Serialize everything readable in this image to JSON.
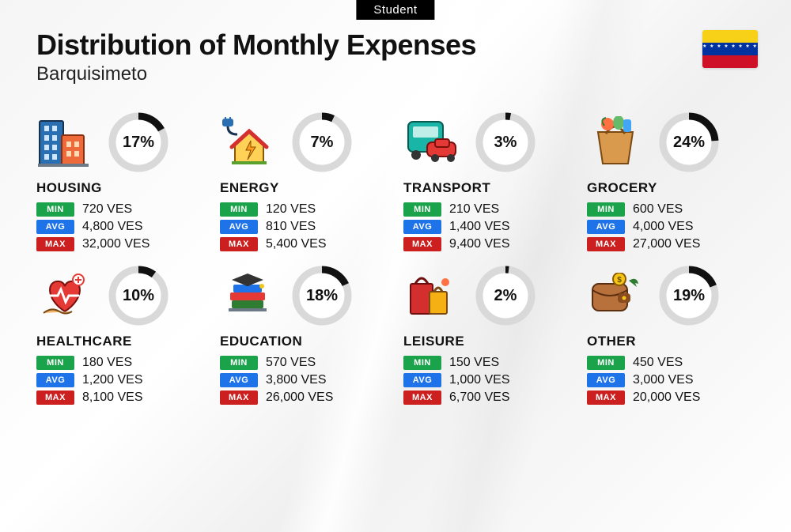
{
  "badge": "Student",
  "title": "Distribution of Monthly Expenses",
  "subtitle": "Barquisimeto",
  "currency": "VES",
  "flag": {
    "top": "#f7d117",
    "middle": "#0033a0",
    "bottom": "#ce1126",
    "stars": "★ ★ ★ ★ ★ ★ ★ ★"
  },
  "ring": {
    "radius": 33,
    "stroke_width": 9,
    "track_color": "#d9d9d9",
    "arc_color": "#111111",
    "center_bg": "#ffffff"
  },
  "stat_labels": {
    "min": "MIN",
    "avg": "AVG",
    "max": "MAX"
  },
  "stat_colors": {
    "min": "#1aa34a",
    "avg": "#1e73e8",
    "max": "#cc1f1f"
  },
  "categories": [
    {
      "key": "housing",
      "label": "HOUSING",
      "pct": 17,
      "min": "720",
      "avg": "4,800",
      "max": "32,000"
    },
    {
      "key": "energy",
      "label": "ENERGY",
      "pct": 7,
      "min": "120",
      "avg": "810",
      "max": "5,400"
    },
    {
      "key": "transport",
      "label": "TRANSPORT",
      "pct": 3,
      "min": "210",
      "avg": "1,400",
      "max": "9,400"
    },
    {
      "key": "grocery",
      "label": "GROCERY",
      "pct": 24,
      "min": "600",
      "avg": "4,000",
      "max": "27,000"
    },
    {
      "key": "healthcare",
      "label": "HEALTHCARE",
      "pct": 10,
      "min": "180",
      "avg": "1,200",
      "max": "8,100"
    },
    {
      "key": "education",
      "label": "EDUCATION",
      "pct": 18,
      "min": "570",
      "avg": "3,800",
      "max": "26,000"
    },
    {
      "key": "leisure",
      "label": "LEISURE",
      "pct": 2,
      "min": "150",
      "avg": "1,000",
      "max": "6,700"
    },
    {
      "key": "other",
      "label": "OTHER",
      "pct": 19,
      "min": "450",
      "avg": "3,000",
      "max": "20,000"
    }
  ]
}
